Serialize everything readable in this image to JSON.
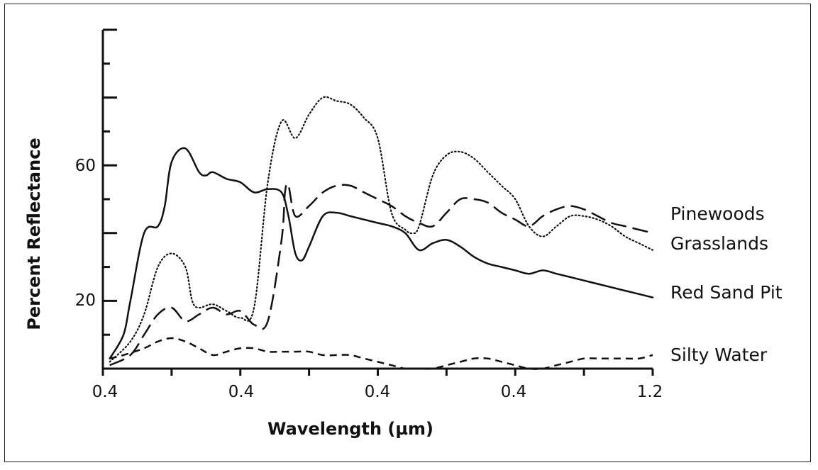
{
  "chart_data": {
    "type": "line",
    "title": "",
    "xlabel": "Wavelength (µm)",
    "ylabel": "Percent Reflectance",
    "x_tick_labels": [
      "0.4",
      "0.4",
      "0.4",
      "0.4",
      "1.2"
    ],
    "y_tick_labels": [
      "20",
      "60"
    ],
    "xlim": [
      0.4,
      1.2
    ],
    "ylim": [
      0,
      100
    ],
    "grid": false,
    "legend": "inline labels at right end of each curve",
    "series": [
      {
        "name": "Pinewoods",
        "style": "long-dash",
        "x": [
          0.41,
          0.44,
          0.46,
          0.48,
          0.5,
          0.52,
          0.54,
          0.56,
          0.58,
          0.6,
          0.62,
          0.64,
          0.66,
          0.665,
          0.67,
          0.68,
          0.7,
          0.72,
          0.74,
          0.76,
          0.78,
          0.8,
          0.82,
          0.84,
          0.86,
          0.88,
          0.9,
          0.92,
          0.94,
          0.96,
          0.98,
          1.0,
          1.02,
          1.04,
          1.06,
          1.08,
          1.1,
          1.12,
          1.14,
          1.16,
          1.18,
          1.2
        ],
        "y": [
          1,
          4,
          10,
          16,
          18,
          14,
          16,
          18,
          16,
          17,
          13,
          14,
          38,
          52,
          54,
          45,
          48,
          52,
          54,
          54,
          52,
          50,
          48,
          45,
          43,
          42,
          46,
          50,
          50,
          49,
          46,
          44,
          42,
          45,
          47,
          48,
          47,
          45,
          43,
          42,
          41,
          40
        ]
      },
      {
        "name": "Grasslands",
        "style": "dotted",
        "x": [
          0.41,
          0.44,
          0.46,
          0.48,
          0.5,
          0.52,
          0.53,
          0.54,
          0.56,
          0.58,
          0.6,
          0.62,
          0.64,
          0.66,
          0.68,
          0.7,
          0.72,
          0.74,
          0.76,
          0.78,
          0.8,
          0.82,
          0.84,
          0.85,
          0.86,
          0.88,
          0.9,
          0.92,
          0.94,
          0.96,
          0.98,
          1.0,
          1.02,
          1.04,
          1.06,
          1.08,
          1.1,
          1.12,
          1.14,
          1.16,
          1.18,
          1.2
        ],
        "y": [
          2,
          8,
          16,
          30,
          34,
          30,
          20,
          18,
          19,
          17,
          15,
          18,
          55,
          73,
          68,
          75,
          80,
          79,
          78,
          74,
          68,
          46,
          41,
          40,
          42,
          57,
          63,
          64,
          62,
          58,
          54,
          50,
          42,
          39,
          42,
          45,
          45,
          44,
          42,
          39,
          37,
          35
        ]
      },
      {
        "name": "Red Sand Pit",
        "style": "solid",
        "x": [
          0.41,
          0.43,
          0.44,
          0.46,
          0.48,
          0.49,
          0.5,
          0.52,
          0.54,
          0.55,
          0.56,
          0.58,
          0.6,
          0.62,
          0.64,
          0.66,
          0.67,
          0.68,
          0.69,
          0.7,
          0.72,
          0.74,
          0.76,
          0.78,
          0.8,
          0.82,
          0.84,
          0.86,
          0.88,
          0.9,
          0.92,
          0.94,
          0.96,
          0.98,
          1.0,
          1.02,
          1.04,
          1.06,
          1.08,
          1.1,
          1.12,
          1.14,
          1.16,
          1.18,
          1.2
        ],
        "y": [
          3,
          10,
          20,
          40,
          42,
          48,
          61,
          65,
          58,
          57,
          58,
          56,
          55,
          52,
          53,
          52,
          45,
          34,
          32,
          36,
          45,
          46,
          45,
          44,
          43,
          42,
          40,
          35,
          37,
          38,
          36,
          33,
          31,
          30,
          29,
          28,
          29,
          28,
          27,
          26,
          25,
          24,
          23,
          22,
          21
        ]
      },
      {
        "name": "Silty Water",
        "style": "short-dash",
        "x": [
          0.41,
          0.43,
          0.46,
          0.48,
          0.5,
          0.52,
          0.54,
          0.56,
          0.58,
          0.6,
          0.62,
          0.64,
          0.66,
          0.68,
          0.7,
          0.72,
          0.74,
          0.76,
          0.78,
          0.8,
          0.82,
          0.84,
          0.86,
          0.88,
          0.9,
          0.92,
          0.94,
          0.96,
          0.98,
          1.0,
          1.02,
          1.04,
          1.06,
          1.08,
          1.1,
          1.12,
          1.14,
          1.16,
          1.18,
          1.2
        ],
        "y": [
          3,
          4,
          6,
          8,
          9,
          8,
          6,
          4,
          5,
          6,
          6,
          5,
          5,
          5,
          5,
          4,
          4,
          4,
          3,
          2,
          1,
          0,
          0,
          0,
          1,
          2,
          3,
          3,
          2,
          1,
          0,
          0,
          1,
          2,
          3,
          3,
          3,
          3,
          3,
          4
        ]
      }
    ]
  }
}
